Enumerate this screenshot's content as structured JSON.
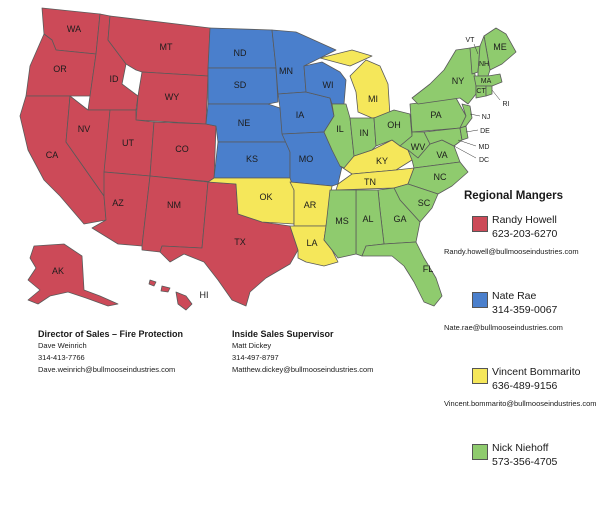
{
  "legend": {
    "title": "Regional Mangers",
    "regions": [
      {
        "name": "Randy Howell",
        "phone": "623-203-6270",
        "email": "Randy.howell@bullmooseindustries.com",
        "color": "#cc4a58"
      },
      {
        "name": "Nate Rae",
        "phone": "314-359-0067",
        "email": "Nate.rae@bullmooseindustries.com",
        "color": "#4a7fcc"
      },
      {
        "name": "Vincent Bommarito",
        "phone": "636-489-9156",
        "email": "Vincent.bommarito@bullmooseindustries.com",
        "color": "#f5e75a"
      },
      {
        "name": "Nick Niehoff",
        "phone": "573-356-4705",
        "email": "",
        "color": "#8fcb6e"
      }
    ]
  },
  "contacts": [
    {
      "title": "Director of Sales – Fire Protection",
      "name": "Dave Weinrich",
      "phone": "314-413-7766",
      "email": "Dave.weinrich@bullmooseindustries.com"
    },
    {
      "title": "Inside Sales Supervisor",
      "name": "Matt Dickey",
      "phone": "314-497-8797",
      "email": "Matthew.dickey@bullmooseindustries.com"
    }
  ],
  "state_labels": {
    "WA": "WA",
    "OR": "OR",
    "CA": "CA",
    "ID": "ID",
    "NV": "NV",
    "MT": "MT",
    "WY": "WY",
    "UT": "UT",
    "AZ": "AZ",
    "CO": "CO",
    "NM": "NM",
    "TX": "TX",
    "AK": "AK",
    "HI": "HI",
    "ND": "ND",
    "SD": "SD",
    "NE": "NE",
    "KS": "KS",
    "MN": "MN",
    "IA": "IA",
    "MO": "MO",
    "WI": "WI",
    "OK": "OK",
    "AR": "AR",
    "LA": "LA",
    "MI": "MI",
    "KY": "KY",
    "TN": "TN",
    "IL": "IL",
    "IN": "IN",
    "OH": "OH",
    "PA": "PA",
    "NY": "NY",
    "WV": "WV",
    "VA": "VA",
    "NC": "NC",
    "SC": "SC",
    "GA": "GA",
    "AL": "AL",
    "MS": "MS",
    "FL": "FL",
    "ME": "ME",
    "VT": "VT",
    "NH": "NH",
    "MA": "MA",
    "CT": "CT",
    "RI": "RI",
    "NJ": "NJ",
    "DE": "DE",
    "MD": "MD",
    "DC": "DC"
  },
  "state_regions": {
    "WA": 0,
    "OR": 0,
    "CA": 0,
    "ID": 0,
    "NV": 0,
    "MT": 0,
    "WY": 0,
    "UT": 0,
    "AZ": 0,
    "CO": 0,
    "NM": 0,
    "TX": 0,
    "AK": 0,
    "HI": 0,
    "ND": 1,
    "SD": 1,
    "NE": 1,
    "KS": 1,
    "MN": 1,
    "IA": 1,
    "MO": 1,
    "WI": 1,
    "OK": 2,
    "AR": 2,
    "LA": 2,
    "MI": 2,
    "KY": 2,
    "TN": 2,
    "IL": 3,
    "IN": 3,
    "OH": 3,
    "PA": 3,
    "NY": 3,
    "WV": 3,
    "VA": 3,
    "NC": 3,
    "SC": 3,
    "GA": 3,
    "AL": 3,
    "MS": 3,
    "FL": 3,
    "ME": 3,
    "VT": 3,
    "NH": 3,
    "MA": 3,
    "CT": 3,
    "RI": 3,
    "NJ": 3,
    "DE": 3,
    "MD": 3
  }
}
